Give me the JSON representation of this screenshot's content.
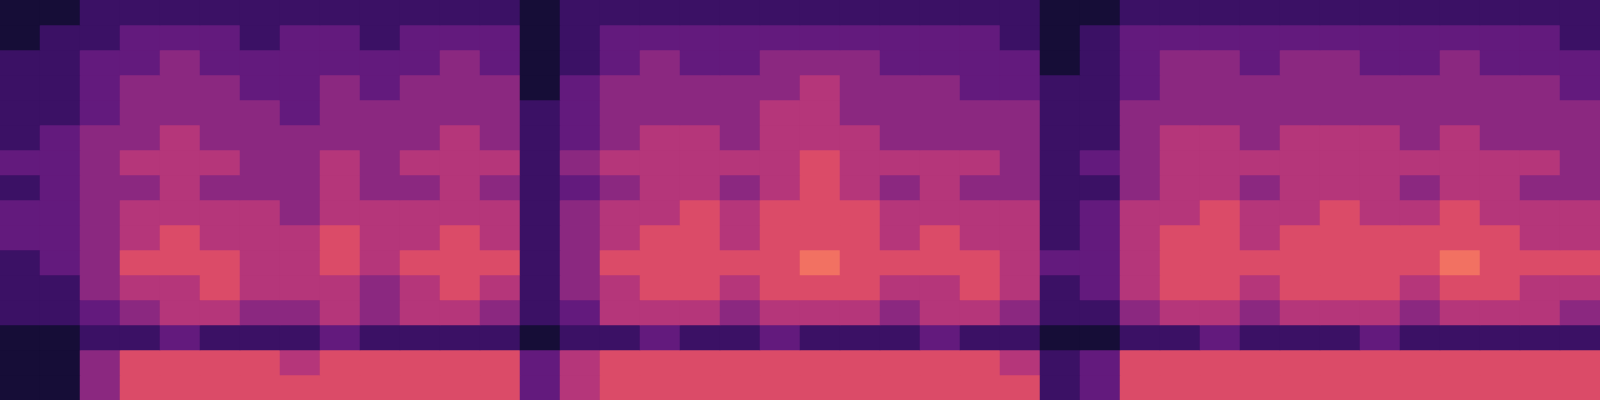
{
  "chart_data": {
    "type": "heatmap",
    "tick_labels": false,
    "grid": false,
    "color_range": [
      0,
      10
    ],
    "cells": [
      [
        1,
        1,
        4,
        6,
        6,
        6,
        6,
        6,
        6,
        6,
        6,
        6,
        6,
        3,
        5,
        6,
        6,
        6,
        6,
        6,
        6,
        6,
        6,
        6,
        6,
        6,
        2,
        3,
        6,
        6,
        6,
        6,
        6,
        6,
        6,
        6,
        6,
        6,
        6,
        6
      ],
      [
        1,
        1,
        4,
        6,
        6,
        6,
        6,
        5,
        6,
        6,
        6,
        6,
        6,
        3,
        5,
        6,
        6,
        6,
        6,
        6,
        6,
        6,
        6,
        6,
        6,
        5,
        2,
        3,
        6,
        6,
        6,
        6,
        6,
        6,
        6,
        6,
        6,
        6,
        6,
        6
      ],
      [
        1,
        1,
        2,
        2,
        3,
        2,
        2,
        2,
        3,
        2,
        2,
        2,
        2,
        1,
        2,
        2,
        3,
        2,
        2,
        3,
        2,
        2,
        2,
        3,
        2,
        2,
        1,
        1,
        2,
        2,
        3,
        2,
        2,
        2,
        3,
        2,
        2,
        2,
        2,
        2
      ],
      [
        2,
        2,
        3,
        4,
        5,
        5,
        4,
        4,
        5,
        4,
        5,
        5,
        4,
        2,
        3,
        5,
        5,
        5,
        4,
        5,
        5,
        5,
        4,
        5,
        5,
        4,
        2,
        2,
        4,
        5,
        5,
        4,
        5,
        5,
        5,
        4,
        5,
        5,
        5,
        4
      ],
      [
        2,
        2,
        4,
        5,
        5,
        6,
        5,
        5,
        5,
        4,
        5,
        6,
        5,
        2,
        4,
        5,
        6,
        6,
        5,
        6,
        6,
        6,
        5,
        5,
        6,
        5,
        2,
        3,
        5,
        6,
        6,
        5,
        6,
        6,
        6,
        5,
        6,
        6,
        5,
        5
      ],
      [
        2,
        3,
        4,
        6,
        6,
        6,
        5,
        5,
        6,
        5,
        6,
        6,
        6,
        2,
        4,
        6,
        6,
        6,
        6,
        6,
        7,
        6,
        6,
        6,
        6,
        5,
        3,
        3,
        5,
        6,
        6,
        6,
        6,
        6,
        6,
        6,
        7,
        6,
        6,
        6
      ],
      [
        3,
        3,
        4,
        5,
        6,
        5,
        5,
        5,
        6,
        5,
        5,
        6,
        5,
        2,
        4,
        5,
        6,
        6,
        5,
        6,
        6,
        6,
        5,
        6,
        5,
        5,
        2,
        3,
        5,
        6,
        6,
        5,
        6,
        6,
        6,
        6,
        6,
        6,
        5,
        5
      ],
      [
        3,
        3,
        4,
        5,
        5,
        5,
        5,
        4,
        5,
        5,
        5,
        5,
        5,
        2,
        4,
        5,
        5,
        6,
        5,
        6,
        6,
        6,
        5,
        5,
        5,
        5,
        2,
        3,
        5,
        5,
        6,
        5,
        5,
        6,
        5,
        5,
        6,
        5,
        5,
        5
      ],
      [
        2,
        3,
        4,
        4,
        5,
        4,
        4,
        4,
        5,
        4,
        4,
        5,
        4,
        2,
        3,
        4,
        5,
        5,
        4,
        5,
        6,
        5,
        4,
        5,
        4,
        4,
        2,
        2,
        4,
        5,
        5,
        4,
        5,
        5,
        5,
        4,
        5,
        5,
        4,
        4
      ],
      [
        3,
        3,
        4,
        5,
        5,
        5,
        4,
        4,
        5,
        4,
        5,
        5,
        5,
        2,
        4,
        5,
        5,
        5,
        5,
        5,
        6,
        5,
        5,
        5,
        5,
        4,
        2,
        3,
        4,
        5,
        5,
        5,
        5,
        5,
        5,
        5,
        5,
        5,
        5,
        4
      ],
      [
        2,
        3,
        4,
        4,
        5,
        4,
        4,
        4,
        4,
        4,
        4,
        5,
        4,
        2,
        3,
        4,
        5,
        5,
        4,
        5,
        5,
        5,
        4,
        4,
        4,
        4,
        2,
        2,
        4,
        5,
        5,
        4,
        5,
        5,
        5,
        4,
        5,
        4,
        4,
        4
      ],
      [
        2,
        2,
        3,
        4,
        4,
        4,
        4,
        3,
        4,
        4,
        4,
        4,
        4,
        2,
        3,
        4,
        4,
        4,
        4,
        5,
        5,
        4,
        4,
        4,
        4,
        4,
        2,
        2,
        4,
        4,
        4,
        4,
        4,
        4,
        4,
        4,
        4,
        4,
        4,
        4
      ],
      [
        2,
        2,
        3,
        4,
        4,
        4,
        3,
        3,
        4,
        3,
        4,
        4,
        4,
        1,
        3,
        4,
        4,
        4,
        4,
        4,
        5,
        4,
        4,
        4,
        3,
        3,
        2,
        2,
        3,
        4,
        4,
        4,
        4,
        4,
        4,
        4,
        4,
        4,
        4,
        3
      ],
      [
        2,
        2,
        3,
        3,
        4,
        3,
        3,
        3,
        3,
        3,
        3,
        4,
        3,
        1,
        2,
        3,
        4,
        3,
        3,
        4,
        4,
        4,
        3,
        3,
        3,
        3,
        1,
        2,
        3,
        4,
        4,
        3,
        4,
        4,
        3,
        3,
        4,
        3,
        3,
        3
      ],
      [
        1,
        2,
        2,
        3,
        3,
        3,
        2,
        3,
        3,
        2,
        3,
        3,
        3,
        1,
        2,
        3,
        3,
        3,
        3,
        3,
        3,
        3,
        3,
        3,
        3,
        2,
        1,
        2,
        3,
        3,
        3,
        3,
        3,
        3,
        3,
        3,
        3,
        3,
        3,
        2
      ],
      [
        1,
        1,
        2,
        2,
        2,
        2,
        2,
        2,
        2,
        2,
        2,
        2,
        2,
        1,
        2,
        2,
        2,
        2,
        2,
        2,
        2,
        2,
        2,
        2,
        2,
        2,
        1,
        1,
        2,
        2,
        2,
        2,
        2,
        2,
        2,
        2,
        2,
        2,
        2,
        2
      ]
    ]
  }
}
